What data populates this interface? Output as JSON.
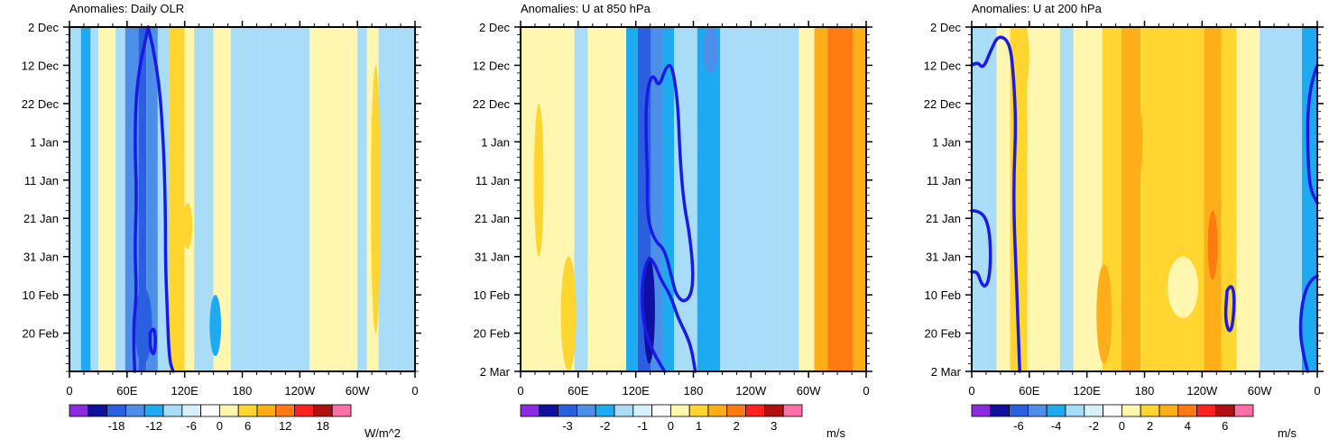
{
  "chart_data": [
    {
      "type": "heatmap",
      "title": "Anomalies: Daily OLR",
      "units": "W/m^2",
      "x_ticks": [
        "0",
        "60E",
        "120E",
        "180",
        "120W",
        "60W",
        "0"
      ],
      "y_ticks": [
        "2 Dec",
        "12 Dec",
        "22 Dec",
        "1 Jan",
        "11 Jan",
        "21 Jan",
        "31 Jan",
        "10 Feb",
        "20 Feb"
      ],
      "colorbar_labels": [
        "-18",
        "-12",
        "-6",
        "0",
        "6",
        "12",
        "18"
      ],
      "bands": [
        {
          "x0": 0,
          "x1": 12,
          "level": -1
        },
        {
          "x0": 12,
          "x1": 22,
          "level": -2
        },
        {
          "x0": 22,
          "x1": 30,
          "level": -1
        },
        {
          "x0": 30,
          "x1": 48,
          "level": 1
        },
        {
          "x0": 48,
          "x1": 58,
          "level": -1
        },
        {
          "x0": 58,
          "x1": 72,
          "level": -3
        },
        {
          "x0": 72,
          "x1": 80,
          "level": -4
        },
        {
          "x0": 80,
          "x1": 92,
          "level": -3
        },
        {
          "x0": 92,
          "x1": 104,
          "level": -1
        },
        {
          "x0": 104,
          "x1": 120,
          "level": 2
        },
        {
          "x0": 120,
          "x1": 130,
          "level": 1
        },
        {
          "x0": 130,
          "x1": 150,
          "level": -1
        },
        {
          "x0": 150,
          "x1": 168,
          "level": 1
        },
        {
          "x0": 168,
          "x1": 200,
          "level": -1
        },
        {
          "x0": 200,
          "x1": 250,
          "level": -1
        },
        {
          "x0": 250,
          "x1": 300,
          "level": 1
        },
        {
          "x0": 300,
          "x1": 310,
          "level": -1
        },
        {
          "x0": 310,
          "x1": 322,
          "level": 1
        },
        {
          "x0": 322,
          "x1": 340,
          "level": -1
        },
        {
          "x0": 340,
          "x1": 360,
          "level": -1
        }
      ],
      "blobs": [
        {
          "x0": 104,
          "x1": 118,
          "y0": 0,
          "y1": 10,
          "level": 2
        },
        {
          "x0": 118,
          "x1": 128,
          "y0": 46,
          "y1": 58,
          "level": 2
        },
        {
          "x0": 68,
          "x1": 86,
          "y0": 68,
          "y1": 88,
          "level": -4
        },
        {
          "x0": 146,
          "x1": 158,
          "y0": 70,
          "y1": 86,
          "level": -2
        },
        {
          "x0": 314,
          "x1": 324,
          "y0": 10,
          "y1": 80,
          "level": 2
        }
      ],
      "contours": [
        {
          "level": -6,
          "points": [
            [
              82,
              0
            ],
            [
              92,
              10
            ],
            [
              98,
              30
            ],
            [
              100,
              48
            ],
            [
              100,
              62
            ],
            [
              102,
              75
            ],
            [
              104,
              87
            ],
            [
              108,
              90
            ]
          ]
        },
        {
          "level": -6,
          "points": [
            [
              68,
              90
            ],
            [
              66,
              80
            ],
            [
              70,
              70
            ],
            [
              68,
              58
            ],
            [
              70,
              44
            ],
            [
              68,
              30
            ],
            [
              70,
              14
            ],
            [
              82,
              0
            ]
          ]
        },
        {
          "level": -6,
          "points": [
            [
              84,
              80
            ],
            [
              88,
              78
            ],
            [
              90,
              82
            ],
            [
              88,
              86
            ],
            [
              84,
              84
            ],
            [
              84,
              80
            ]
          ]
        }
      ]
    },
    {
      "type": "heatmap",
      "title": "Anomalies: U at 850 hPa",
      "units": "m/s",
      "x_ticks": [
        "0",
        "60E",
        "120E",
        "180",
        "120W",
        "60W",
        "0"
      ],
      "y_ticks": [
        "2 Dec",
        "12 Dec",
        "22 Dec",
        "1 Jan",
        "11 Jan",
        "21 Jan",
        "31 Jan",
        "10 Feb",
        "20 Feb",
        "2 Mar"
      ],
      "colorbar_labels": [
        "-3",
        "-2",
        "-1",
        "0",
        "1",
        "2",
        "3"
      ],
      "bands": [
        {
          "x0": 0,
          "x1": 12,
          "level": 1
        },
        {
          "x0": 12,
          "x1": 22,
          "level": 1
        },
        {
          "x0": 22,
          "x1": 40,
          "level": 1
        },
        {
          "x0": 40,
          "x1": 56,
          "level": 1
        },
        {
          "x0": 56,
          "x1": 70,
          "level": -1
        },
        {
          "x0": 70,
          "x1": 94,
          "level": 1
        },
        {
          "x0": 94,
          "x1": 110,
          "level": 1
        },
        {
          "x0": 110,
          "x1": 122,
          "level": -2
        },
        {
          "x0": 122,
          "x1": 136,
          "level": -4
        },
        {
          "x0": 136,
          "x1": 148,
          "level": -3
        },
        {
          "x0": 148,
          "x1": 160,
          "level": -2
        },
        {
          "x0": 160,
          "x1": 184,
          "level": -1
        },
        {
          "x0": 184,
          "x1": 208,
          "level": -2
        },
        {
          "x0": 208,
          "x1": 240,
          "level": -1
        },
        {
          "x0": 240,
          "x1": 270,
          "level": -1
        },
        {
          "x0": 270,
          "x1": 290,
          "level": -1
        },
        {
          "x0": 290,
          "x1": 306,
          "level": 1
        },
        {
          "x0": 306,
          "x1": 320,
          "level": 3
        },
        {
          "x0": 320,
          "x1": 346,
          "level": 4
        },
        {
          "x0": 346,
          "x1": 360,
          "level": 3
        }
      ],
      "blobs": [
        {
          "x0": 128,
          "x1": 140,
          "y0": 60,
          "y1": 88,
          "level": -5
        },
        {
          "x0": 190,
          "x1": 206,
          "y0": 0,
          "y1": 12,
          "level": -3
        },
        {
          "x0": 42,
          "x1": 58,
          "y0": 60,
          "y1": 90,
          "level": 2
        },
        {
          "x0": 14,
          "x1": 24,
          "y0": 20,
          "y1": 60,
          "level": 2
        }
      ],
      "contours": [
        {
          "level": -2,
          "points": [
            [
              132,
              38
            ],
            [
              130,
              26
            ],
            [
              132,
              16
            ],
            [
              138,
              12
            ],
            [
              144,
              16
            ],
            [
              152,
              10
            ],
            [
              158,
              10
            ],
            [
              164,
              20
            ],
            [
              166,
              34
            ],
            [
              170,
              46
            ],
            [
              176,
              54
            ],
            [
              180,
              64
            ],
            [
              178,
              70
            ],
            [
              170,
              72
            ],
            [
              162,
              70
            ],
            [
              158,
              66
            ],
            [
              150,
              58
            ],
            [
              140,
              56
            ],
            [
              132,
              50
            ],
            [
              132,
              38
            ]
          ]
        },
        {
          "level": -2,
          "points": [
            [
              150,
              90
            ],
            [
              140,
              86
            ],
            [
              130,
              80
            ],
            [
              126,
              72
            ],
            [
              128,
              64
            ],
            [
              134,
              60
            ],
            [
              140,
              62
            ],
            [
              146,
              66
            ],
            [
              156,
              70
            ],
            [
              164,
              76
            ],
            [
              172,
              80
            ],
            [
              178,
              84
            ],
            [
              182,
              90
            ]
          ]
        }
      ]
    },
    {
      "type": "heatmap",
      "title": "Anomalies: U at 200 hPa",
      "units": "m/s",
      "x_ticks": [
        "0",
        "60E",
        "120E",
        "180",
        "120W",
        "60W",
        "0"
      ],
      "y_ticks": [
        "2 Dec",
        "12 Dec",
        "22 Dec",
        "1 Jan",
        "11 Jan",
        "21 Jan",
        "31 Jan",
        "10 Feb",
        "20 Feb",
        "2 Mar"
      ],
      "colorbar_labels": [
        "-6",
        "-4",
        "-2",
        "0",
        "2",
        "4",
        "6"
      ],
      "bands": [
        {
          "x0": 0,
          "x1": 14,
          "level": -1
        },
        {
          "x0": 14,
          "x1": 26,
          "level": -1
        },
        {
          "x0": 26,
          "x1": 40,
          "level": 1
        },
        {
          "x0": 40,
          "x1": 58,
          "level": 2
        },
        {
          "x0": 58,
          "x1": 76,
          "level": 1
        },
        {
          "x0": 76,
          "x1": 92,
          "level": 1
        },
        {
          "x0": 92,
          "x1": 106,
          "level": -1
        },
        {
          "x0": 106,
          "x1": 124,
          "level": 1
        },
        {
          "x0": 124,
          "x1": 136,
          "level": 1
        },
        {
          "x0": 136,
          "x1": 156,
          "level": 2
        },
        {
          "x0": 156,
          "x1": 176,
          "level": 3
        },
        {
          "x0": 176,
          "x1": 196,
          "level": 2
        },
        {
          "x0": 196,
          "x1": 226,
          "level": 2
        },
        {
          "x0": 226,
          "x1": 242,
          "level": 2
        },
        {
          "x0": 242,
          "x1": 260,
          "level": 3
        },
        {
          "x0": 260,
          "x1": 276,
          "level": 2
        },
        {
          "x0": 276,
          "x1": 300,
          "level": 1
        },
        {
          "x0": 300,
          "x1": 320,
          "level": -1
        },
        {
          "x0": 320,
          "x1": 344,
          "level": -1
        },
        {
          "x0": 344,
          "x1": 360,
          "level": -2
        }
      ],
      "blobs": [
        {
          "x0": 246,
          "x1": 256,
          "y0": 48,
          "y1": 66,
          "level": 4
        },
        {
          "x0": 166,
          "x1": 178,
          "y0": 20,
          "y1": 40,
          "level": 3
        },
        {
          "x0": 130,
          "x1": 146,
          "y0": 62,
          "y1": 88,
          "level": 3
        },
        {
          "x0": 50,
          "x1": 60,
          "y0": 0,
          "y1": 16,
          "level": 2
        },
        {
          "x0": 204,
          "x1": 236,
          "y0": 60,
          "y1": 76,
          "level": 1
        }
      ],
      "contours": [
        {
          "level": -2,
          "points": [
            [
              0,
              10
            ],
            [
              6,
              9
            ],
            [
              12,
              11
            ],
            [
              20,
              6
            ],
            [
              28,
              2
            ],
            [
              40,
              4
            ],
            [
              44,
              14
            ],
            [
              46,
              26
            ],
            [
              44,
              38
            ],
            [
              44,
              50
            ],
            [
              46,
              62
            ],
            [
              48,
              76
            ],
            [
              50,
              90
            ]
          ]
        },
        {
          "level": -2,
          "points": [
            [
              0,
              48
            ],
            [
              10,
              48
            ],
            [
              18,
              52
            ],
            [
              20,
              60
            ],
            [
              18,
              66
            ],
            [
              14,
              68
            ],
            [
              10,
              67
            ],
            [
              6,
              64
            ],
            [
              0,
              64
            ]
          ]
        },
        {
          "level": -2,
          "points": [
            [
              266,
              69
            ],
            [
              270,
              67
            ],
            [
              274,
              70
            ],
            [
              272,
              78
            ],
            [
              268,
              80
            ],
            [
              264,
              76
            ],
            [
              266,
              69
            ]
          ]
        },
        {
          "level": -2,
          "points": [
            [
              360,
              10
            ],
            [
              354,
              14
            ],
            [
              350,
              22
            ],
            [
              350,
              32
            ],
            [
              352,
              42
            ],
            [
              360,
              46
            ]
          ]
        },
        {
          "level": -2,
          "points": [
            [
              360,
              65
            ],
            [
              352,
              66
            ],
            [
              344,
              72
            ],
            [
              342,
              80
            ],
            [
              346,
              86
            ],
            [
              350,
              90
            ]
          ]
        }
      ]
    }
  ]
}
